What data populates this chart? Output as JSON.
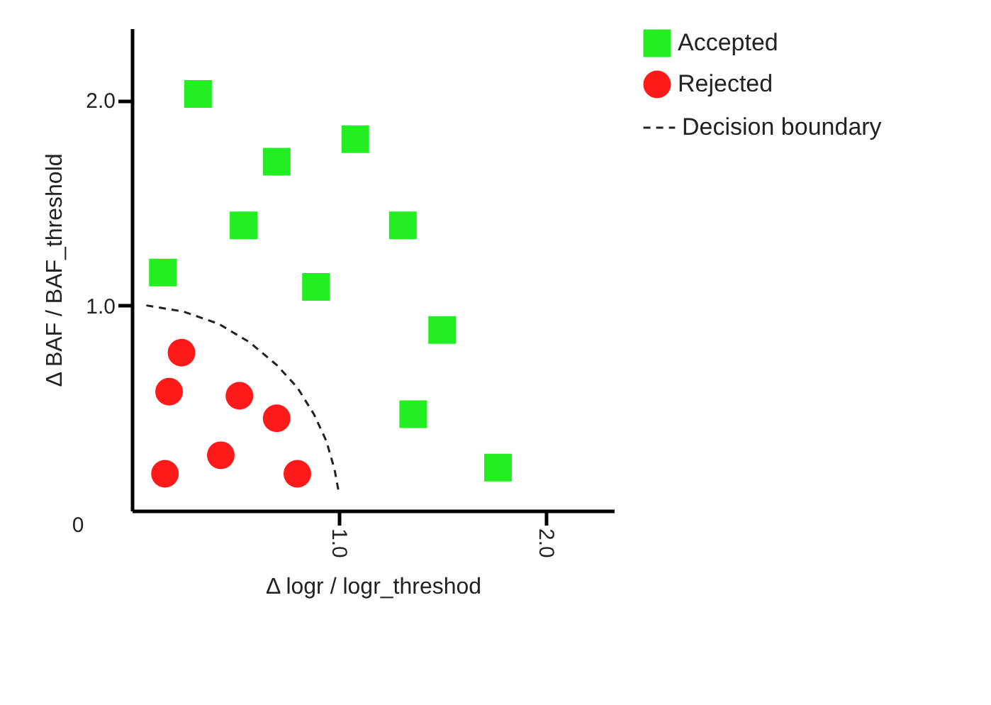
{
  "chart_data": {
    "type": "scatter",
    "xlabel": "Δ logr / logr_threshod",
    "ylabel": "Δ BAF / BAF_threshold",
    "xlim": [
      0,
      2.33
    ],
    "ylim": [
      0,
      2.35
    ],
    "xticks": [
      {
        "value": 1,
        "label": "1.0"
      },
      {
        "value": 2,
        "label": "2.0"
      }
    ],
    "yticks": [
      {
        "value": 1,
        "label": "1.0"
      },
      {
        "value": 2,
        "label": "2.0"
      }
    ],
    "grid": false,
    "legend": "top right",
    "annotations": [
      "0"
    ],
    "series": [
      {
        "name": "Accepted",
        "marker": "square",
        "color": "#22ee22",
        "x": [
          0.32,
          1.08,
          0.7,
          0.54,
          1.31,
          0.15,
          0.89,
          1.5,
          1.36,
          1.77
        ],
        "values": [
          2.03,
          1.81,
          1.7,
          1.39,
          1.39,
          1.16,
          1.09,
          0.88,
          0.47,
          0.21
        ]
      },
      {
        "name": "Rejected",
        "marker": "circle",
        "color": "#ff1a1a",
        "x": [
          0.24,
          0.18,
          0.52,
          0.7,
          0.43,
          0.16,
          0.8
        ],
        "values": [
          0.77,
          0.58,
          0.56,
          0.45,
          0.27,
          0.18,
          0.18
        ]
      },
      {
        "name": "Decision boundary",
        "type": "line",
        "line_style": "dashed",
        "color": "#222222",
        "x": [
          0.07,
          0.25,
          0.42,
          0.57,
          0.7,
          0.8,
          0.88,
          0.94,
          0.98,
          1.0
        ],
        "values": [
          1.0,
          0.97,
          0.91,
          0.82,
          0.71,
          0.6,
          0.47,
          0.34,
          0.2,
          0.09
        ]
      }
    ]
  }
}
